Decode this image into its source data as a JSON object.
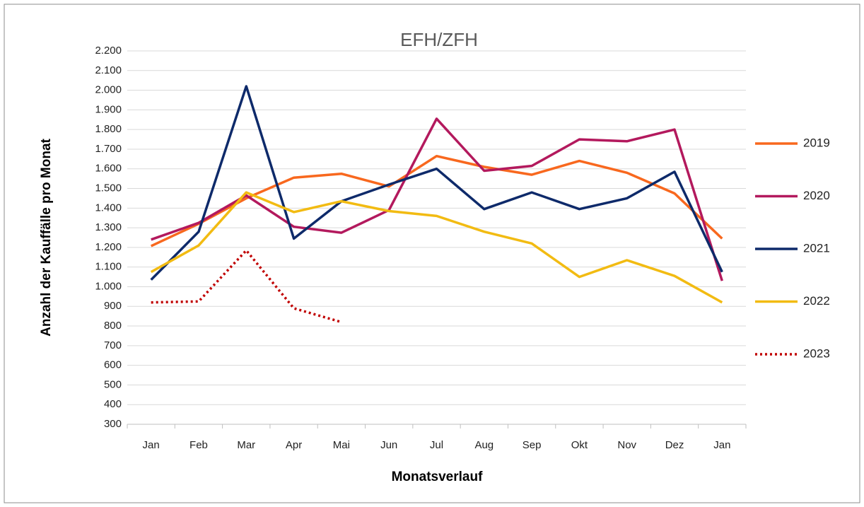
{
  "chart_data": {
    "type": "line",
    "title": "EFH/ZFH",
    "y_label": "Anzahl der Kauffälle pro Monat",
    "x_label": "Monatsverlauf",
    "categories": [
      "Jan",
      "Feb",
      "Mar",
      "Apr",
      "Mai",
      "Jun",
      "Jul",
      "Aug",
      "Sep",
      "Okt",
      "Nov",
      "Dez",
      "Jan"
    ],
    "ylim": [
      300,
      2200
    ],
    "yticks": [
      {
        "value": 2200,
        "label": "2.200"
      },
      {
        "value": 2100,
        "label": "2.100"
      },
      {
        "value": 2000,
        "label": "2.000"
      },
      {
        "value": 1900,
        "label": "1.900"
      },
      {
        "value": 1800,
        "label": "1.800"
      },
      {
        "value": 1700,
        "label": "1.700"
      },
      {
        "value": 1600,
        "label": "1.600"
      },
      {
        "value": 1500,
        "label": "1.500"
      },
      {
        "value": 1400,
        "label": "1.400"
      },
      {
        "value": 1300,
        "label": "1.300"
      },
      {
        "value": 1200,
        "label": "1.200"
      },
      {
        "value": 1100,
        "label": "1.100"
      },
      {
        "value": 1000,
        "label": "1.000"
      },
      900,
      800,
      700,
      600,
      500,
      400,
      300
    ],
    "grid": true,
    "legend": "right",
    "series": [
      {
        "name": "2019",
        "color": "#f8681e",
        "style": "solid",
        "values": [
          1207,
          1320,
          1450,
          1555,
          1575,
          1510,
          1665,
          1610,
          1570,
          1640,
          1580,
          1475,
          1245
        ]
      },
      {
        "name": "2020",
        "color": "#b3195d",
        "style": "solid",
        "values": [
          1240,
          1325,
          1465,
          1305,
          1275,
          1390,
          1855,
          1590,
          1615,
          1750,
          1740,
          1800,
          1030
        ]
      },
      {
        "name": "2021",
        "color": "#0e2a6a",
        "style": "solid",
        "values": [
          1035,
          1280,
          2020,
          1245,
          1435,
          1520,
          1600,
          1395,
          1480,
          1395,
          1450,
          1585,
          1075
        ]
      },
      {
        "name": "2022",
        "color": "#f2bb12",
        "style": "solid",
        "values": [
          1075,
          1210,
          1480,
          1380,
          1435,
          1385,
          1360,
          1280,
          1220,
          1050,
          1135,
          1055,
          920
        ]
      },
      {
        "name": "2023",
        "color": "#c00000",
        "style": "dotted",
        "values": [
          920,
          925,
          1185,
          890,
          820,
          null,
          null,
          null,
          null,
          null,
          null,
          null,
          null
        ]
      }
    ]
  }
}
